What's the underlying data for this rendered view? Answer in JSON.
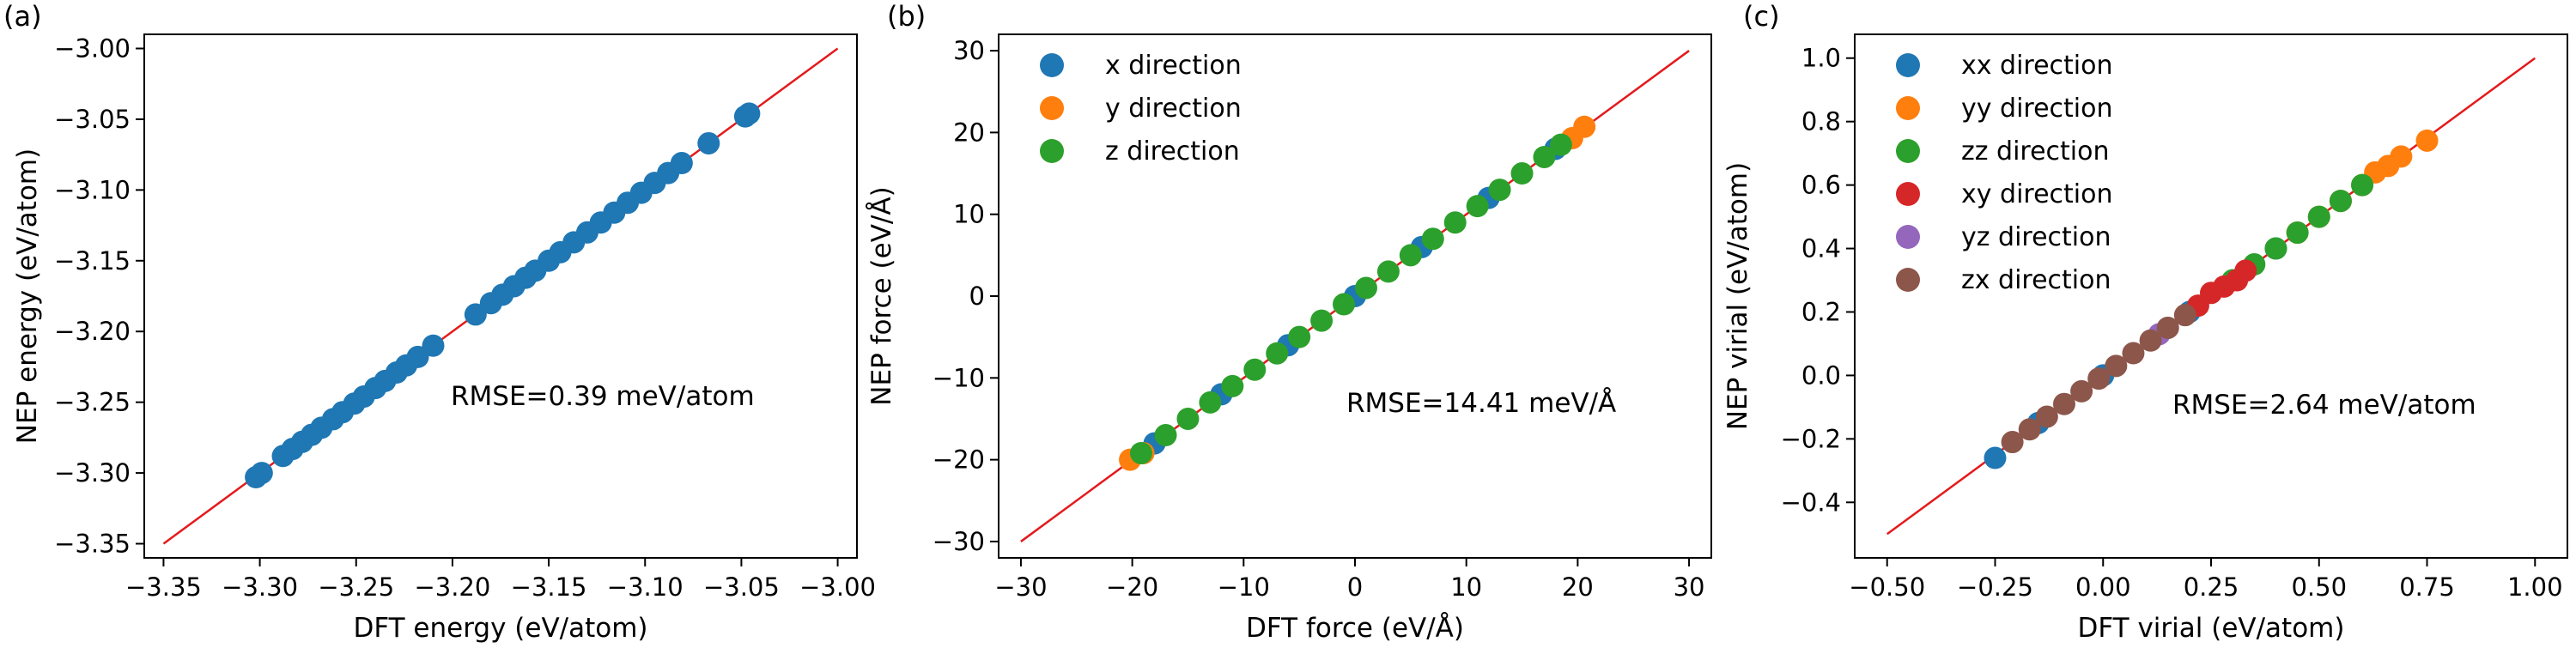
{
  "chart_data": [
    {
      "type": "scatter",
      "panel_label": "(a)",
      "xlabel": "DFT energy (eV/atom)",
      "ylabel": "NEP energy (eV/atom)",
      "xlim": [
        -3.36,
        -2.99
      ],
      "ylim": [
        -3.36,
        -2.99
      ],
      "xticks": [
        -3.35,
        -3.3,
        -3.25,
        -3.2,
        -3.15,
        -3.1,
        -3.05,
        -3.0
      ],
      "xtick_labels": [
        "−3.35",
        "−3.30",
        "−3.25",
        "−3.20",
        "−3.15",
        "−3.10",
        "−3.05",
        "−3.00"
      ],
      "yticks": [
        -3.35,
        -3.3,
        -3.25,
        -3.2,
        -3.15,
        -3.1,
        -3.05,
        -3.0
      ],
      "ytick_labels": [
        "−3.35",
        "−3.30",
        "−3.25",
        "−3.20",
        "−3.15",
        "−3.10",
        "−3.05",
        "−3.00"
      ],
      "annotation": "RMSE=0.39 meV/atom",
      "reference_line": {
        "x": [
          -3.35,
          -3.0
        ],
        "y": [
          -3.35,
          -3.0
        ],
        "color": "#e41a1c"
      },
      "legend": "none",
      "series": [
        {
          "color": "#1f77b4",
          "points": [
            [
              -3.302,
              -3.303
            ],
            [
              -3.299,
              -3.3
            ],
            [
              -3.288,
              -3.288
            ],
            [
              -3.283,
              -3.283
            ],
            [
              -3.278,
              -3.278
            ],
            [
              -3.273,
              -3.273
            ],
            [
              -3.268,
              -3.268
            ],
            [
              -3.262,
              -3.262
            ],
            [
              -3.257,
              -3.257
            ],
            [
              -3.251,
              -3.251
            ],
            [
              -3.246,
              -3.246
            ],
            [
              -3.24,
              -3.24
            ],
            [
              -3.235,
              -3.235
            ],
            [
              -3.229,
              -3.229
            ],
            [
              -3.224,
              -3.224
            ],
            [
              -3.218,
              -3.218
            ],
            [
              -3.21,
              -3.21
            ],
            [
              -3.188,
              -3.188
            ],
            [
              -3.18,
              -3.18
            ],
            [
              -3.174,
              -3.174
            ],
            [
              -3.168,
              -3.168
            ],
            [
              -3.162,
              -3.162
            ],
            [
              -3.157,
              -3.157
            ],
            [
              -3.15,
              -3.15
            ],
            [
              -3.144,
              -3.144
            ],
            [
              -3.137,
              -3.137
            ],
            [
              -3.13,
              -3.13
            ],
            [
              -3.123,
              -3.123
            ],
            [
              -3.116,
              -3.116
            ],
            [
              -3.109,
              -3.109
            ],
            [
              -3.102,
              -3.102
            ],
            [
              -3.095,
              -3.095
            ],
            [
              -3.088,
              -3.088
            ],
            [
              -3.081,
              -3.081
            ],
            [
              -3.067,
              -3.067
            ],
            [
              -3.048,
              -3.048
            ],
            [
              -3.046,
              -3.046
            ]
          ]
        }
      ]
    },
    {
      "type": "scatter",
      "panel_label": "(b)",
      "xlabel": "DFT force (eV/Å)",
      "ylabel": "NEP force (eV/Å)",
      "xlim": [
        -32,
        32
      ],
      "ylim": [
        -32,
        32
      ],
      "xticks": [
        -30,
        -20,
        -10,
        0,
        10,
        20,
        30
      ],
      "xtick_labels": [
        "−30",
        "−20",
        "−10",
        "0",
        "10",
        "20",
        "30"
      ],
      "yticks": [
        -30,
        -20,
        -10,
        0,
        10,
        20,
        30
      ],
      "ytick_labels": [
        "−30",
        "−20",
        "−10",
        "0",
        "10",
        "20",
        "30"
      ],
      "annotation": "RMSE=14.41 meV/Å",
      "reference_line": {
        "x": [
          -30,
          30
        ],
        "y": [
          -30,
          30
        ],
        "color": "#e41a1c"
      },
      "legend": "upper left",
      "series": [
        {
          "name": "x direction",
          "color": "#1f77b4",
          "points": [
            [
              -18,
              -18
            ],
            [
              -12,
              -12
            ],
            [
              -6,
              -6
            ],
            [
              0,
              0
            ],
            [
              6,
              6
            ],
            [
              12,
              12
            ],
            [
              18,
              18
            ]
          ]
        },
        {
          "name": "y direction",
          "color": "#ff7f0e",
          "points": [
            [
              -20.2,
              -20.0
            ],
            [
              -19.0,
              -19.2
            ],
            [
              19.5,
              19.3
            ],
            [
              20.6,
              20.7
            ]
          ]
        },
        {
          "name": "z direction",
          "color": "#2ca02c",
          "points": [
            [
              -19.2,
              -19.2
            ],
            [
              -17,
              -17
            ],
            [
              -15,
              -15
            ],
            [
              -13,
              -13
            ],
            [
              -11,
              -11
            ],
            [
              -9,
              -9
            ],
            [
              -7,
              -7
            ],
            [
              -5,
              -5
            ],
            [
              -3,
              -3
            ],
            [
              -1,
              -1
            ],
            [
              1,
              1
            ],
            [
              3,
              3
            ],
            [
              5,
              5
            ],
            [
              7,
              7
            ],
            [
              9,
              9
            ],
            [
              11,
              11
            ],
            [
              13,
              13
            ],
            [
              15,
              15
            ],
            [
              17,
              17
            ],
            [
              18.5,
              18.5
            ]
          ]
        }
      ]
    },
    {
      "type": "scatter",
      "panel_label": "(c)",
      "xlabel": "DFT virial (eV/atom)",
      "ylabel": "NEP virial (eV/atom)",
      "xlim": [
        -0.575,
        1.075
      ],
      "ylim": [
        -0.575,
        1.075
      ],
      "xticks": [
        -0.5,
        -0.25,
        0.0,
        0.25,
        0.5,
        0.75,
        1.0
      ],
      "xtick_labels": [
        "−0.50",
        "−0.25",
        "0.00",
        "0.25",
        "0.50",
        "0.75",
        "1.00"
      ],
      "yticks": [
        -0.4,
        -0.2,
        0.0,
        0.2,
        0.4,
        0.6,
        0.8,
        1.0
      ],
      "ytick_labels": [
        "−0.4",
        "−0.2",
        "0.0",
        "0.2",
        "0.4",
        "0.6",
        "0.8",
        "1.0"
      ],
      "annotation": "RMSE=2.64 meV/atom",
      "reference_line": {
        "x": [
          -0.5,
          1.0
        ],
        "y": [
          -0.5,
          1.0
        ],
        "color": "#e41a1c"
      },
      "legend": "upper left",
      "series": [
        {
          "name": "xx direction",
          "color": "#1f77b4",
          "points": [
            [
              -0.25,
              -0.26
            ],
            [
              -0.15,
              -0.15
            ],
            [
              0.0,
              0.0
            ],
            [
              0.2,
              0.2
            ],
            [
              0.4,
              0.4
            ],
            [
              0.55,
              0.55
            ]
          ]
        },
        {
          "name": "yy direction",
          "color": "#ff7f0e",
          "points": [
            [
              0.45,
              0.45
            ],
            [
              0.5,
              0.5
            ],
            [
              0.55,
              0.55
            ],
            [
              0.6,
              0.6
            ],
            [
              0.63,
              0.64
            ],
            [
              0.66,
              0.66
            ],
            [
              0.69,
              0.69
            ],
            [
              0.75,
              0.74
            ]
          ]
        },
        {
          "name": "zz direction",
          "color": "#2ca02c",
          "points": [
            [
              0.3,
              0.3
            ],
            [
              0.35,
              0.35
            ],
            [
              0.4,
              0.4
            ],
            [
              0.45,
              0.45
            ],
            [
              0.5,
              0.5
            ],
            [
              0.55,
              0.55
            ],
            [
              0.6,
              0.6
            ]
          ]
        },
        {
          "name": "xy direction",
          "color": "#d62728",
          "points": [
            [
              0.22,
              0.22
            ],
            [
              0.25,
              0.26
            ],
            [
              0.28,
              0.28
            ],
            [
              0.31,
              0.3
            ],
            [
              0.33,
              0.33
            ]
          ]
        },
        {
          "name": "yz direction",
          "color": "#9467bd",
          "points": [
            [
              0.13,
              0.13
            ],
            [
              0.15,
              0.15
            ]
          ]
        },
        {
          "name": "zx direction",
          "color": "#8c564b",
          "points": [
            [
              -0.21,
              -0.21
            ],
            [
              -0.17,
              -0.17
            ],
            [
              -0.13,
              -0.13
            ],
            [
              -0.09,
              -0.09
            ],
            [
              -0.05,
              -0.05
            ],
            [
              -0.01,
              -0.01
            ],
            [
              0.03,
              0.03
            ],
            [
              0.07,
              0.07
            ],
            [
              0.11,
              0.11
            ],
            [
              0.15,
              0.15
            ],
            [
              0.19,
              0.19
            ]
          ]
        }
      ]
    }
  ]
}
